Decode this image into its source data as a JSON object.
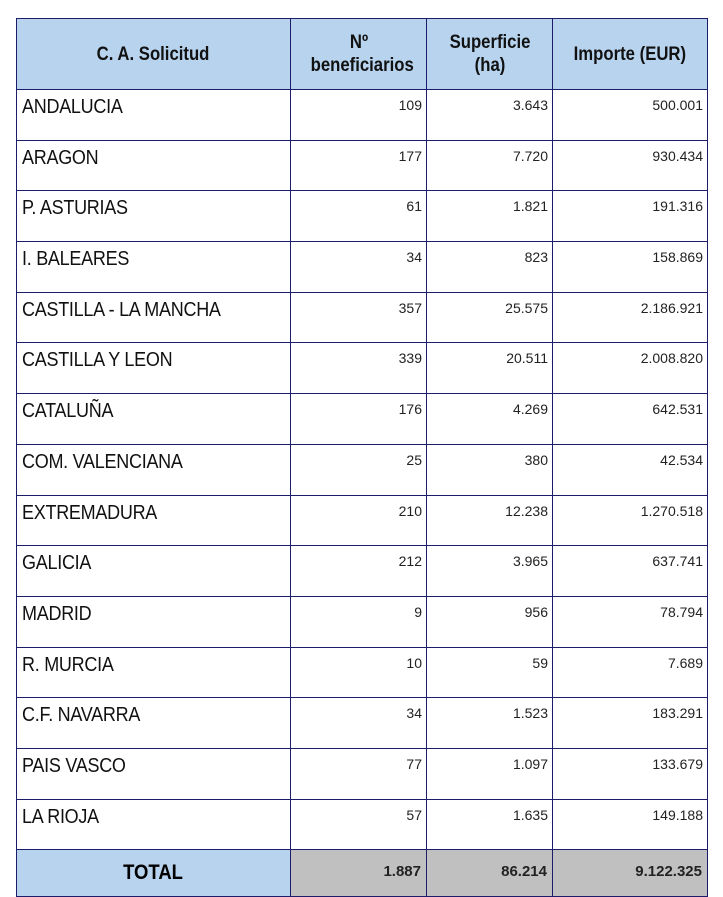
{
  "headers": [
    "C. A. Solicitud",
    "Nº beneficiarios",
    "Superficie (ha)",
    "Importe (EUR)"
  ],
  "rows": [
    {
      "region": "ANDALUCIA",
      "beneficiarios": "109",
      "superficie": "3.643",
      "importe": "500.001"
    },
    {
      "region": "ARAGON",
      "beneficiarios": "177",
      "superficie": "7.720",
      "importe": "930.434"
    },
    {
      "region": "P. ASTURIAS",
      "beneficiarios": "61",
      "superficie": "1.821",
      "importe": "191.316"
    },
    {
      "region": "I. BALEARES",
      "beneficiarios": "34",
      "superficie": "823",
      "importe": "158.869"
    },
    {
      "region": "CASTILLA - LA MANCHA",
      "beneficiarios": "357",
      "superficie": "25.575",
      "importe": "2.186.921"
    },
    {
      "region": "CASTILLA Y LEON",
      "beneficiarios": "339",
      "superficie": "20.511",
      "importe": "2.008.820"
    },
    {
      "region": "CATALUÑA",
      "beneficiarios": "176",
      "superficie": "4.269",
      "importe": "642.531"
    },
    {
      "region": "COM. VALENCIANA",
      "beneficiarios": "25",
      "superficie": "380",
      "importe": "42.534"
    },
    {
      "region": "EXTREMADURA",
      "beneficiarios": "210",
      "superficie": "12.238",
      "importe": "1.270.518"
    },
    {
      "region": "GALICIA",
      "beneficiarios": "212",
      "superficie": "3.965",
      "importe": "637.741"
    },
    {
      "region": "MADRID",
      "beneficiarios": "9",
      "superficie": "956",
      "importe": "78.794"
    },
    {
      "region": "R. MURCIA",
      "beneficiarios": "10",
      "superficie": "59",
      "importe": "7.689"
    },
    {
      "region": "C.F. NAVARRA",
      "beneficiarios": "34",
      "superficie": "1.523",
      "importe": "183.291"
    },
    {
      "region": "PAIS VASCO",
      "beneficiarios": "77",
      "superficie": "1.097",
      "importe": "133.679"
    },
    {
      "region": "LA RIOJA",
      "beneficiarios": "57",
      "superficie": "1.635",
      "importe": "149.188"
    }
  ],
  "total": {
    "label": "TOTAL",
    "beneficiarios": "1.887",
    "superficie": "86.214",
    "importe": "9.122.325"
  },
  "colors": {
    "header_bg": "#b7d3ee",
    "total_bg": "#c0c0c0",
    "border": "#1c1c6a"
  }
}
